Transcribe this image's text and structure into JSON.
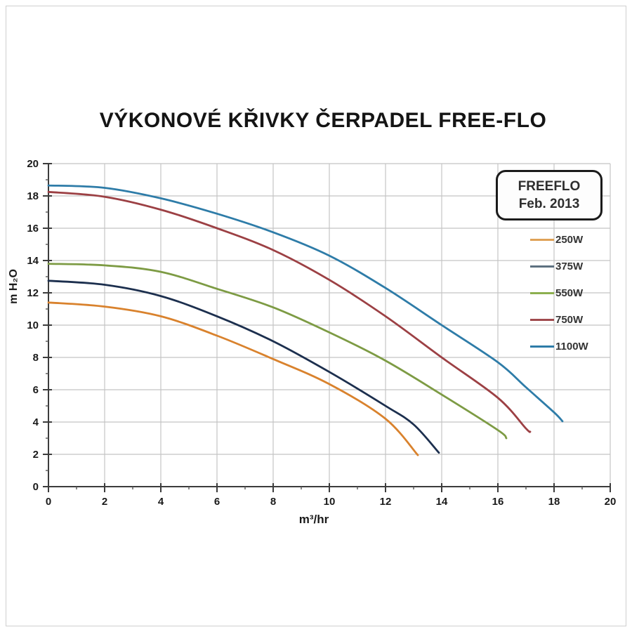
{
  "title": "VÝKONOVÉ KŘIVKY ČERPADEL FREE-FLO",
  "chart_data": {
    "type": "line",
    "title": "VÝKONOVÉ KŘIVKY ČERPADEL FREE-FLO",
    "xlabel": "m³/hr",
    "ylabel": "m H₂O",
    "xlim": [
      0,
      20
    ],
    "ylim": [
      0,
      20
    ],
    "x_ticks": [
      0,
      2,
      4,
      6,
      8,
      10,
      12,
      14,
      16,
      18,
      20
    ],
    "y_ticks": [
      0,
      2,
      4,
      6,
      8,
      10,
      12,
      14,
      16,
      18,
      20
    ],
    "grid": true,
    "grid_color": "#c4c4c4",
    "axis_color": "#3c3c3c",
    "legend_position": "upper right",
    "legend_box": {
      "line1": "FREEFLO",
      "line2": "Feb. 2013"
    },
    "series": [
      {
        "name": "250W",
        "color": "#d9822d",
        "legend_color": "#dfa257",
        "points": [
          [
            0,
            11.4
          ],
          [
            2,
            11.15
          ],
          [
            4,
            10.55
          ],
          [
            6,
            9.35
          ],
          [
            8,
            7.9
          ],
          [
            10,
            6.35
          ],
          [
            12,
            4.2
          ],
          [
            13.15,
            1.95
          ]
        ]
      },
      {
        "name": "375W",
        "color": "#1c2f4e",
        "legend_color": "#5d7080",
        "points": [
          [
            0,
            12.75
          ],
          [
            2,
            12.5
          ],
          [
            4,
            11.8
          ],
          [
            6,
            10.55
          ],
          [
            8,
            9.0
          ],
          [
            10,
            7.1
          ],
          [
            12,
            5.0
          ],
          [
            13,
            3.85
          ],
          [
            13.9,
            2.1
          ]
        ]
      },
      {
        "name": "550W",
        "color": "#7d9b44",
        "legend_color": "#8caf4f",
        "points": [
          [
            0,
            13.8
          ],
          [
            2,
            13.7
          ],
          [
            4,
            13.3
          ],
          [
            6,
            12.25
          ],
          [
            8,
            11.1
          ],
          [
            10,
            9.55
          ],
          [
            12,
            7.8
          ],
          [
            14,
            5.7
          ],
          [
            16,
            3.5
          ],
          [
            16.3,
            3.0
          ]
        ]
      },
      {
        "name": "750W",
        "color": "#9c4044",
        "legend_color": "#a04a4e",
        "points": [
          [
            0,
            18.25
          ],
          [
            2,
            17.95
          ],
          [
            4,
            17.15
          ],
          [
            6,
            16.0
          ],
          [
            8,
            14.65
          ],
          [
            10,
            12.8
          ],
          [
            12,
            10.55
          ],
          [
            14,
            8.0
          ],
          [
            16,
            5.5
          ],
          [
            17,
            3.6
          ],
          [
            17.15,
            3.4
          ]
        ]
      },
      {
        "name": "1100W",
        "color": "#2e7ca8",
        "legend_color": "#2e7ca8",
        "points": [
          [
            0,
            18.65
          ],
          [
            2,
            18.5
          ],
          [
            4,
            17.85
          ],
          [
            6,
            16.9
          ],
          [
            8,
            15.75
          ],
          [
            10,
            14.3
          ],
          [
            12,
            12.3
          ],
          [
            14,
            10.0
          ],
          [
            16,
            7.7
          ],
          [
            17,
            6.15
          ],
          [
            18,
            4.6
          ],
          [
            18.3,
            4.05
          ]
        ]
      }
    ]
  }
}
